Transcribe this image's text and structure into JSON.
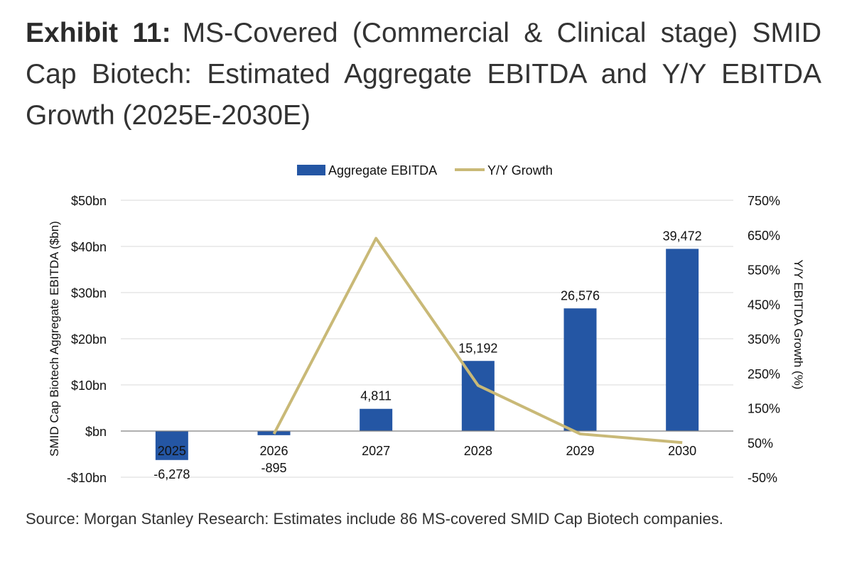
{
  "title": {
    "label": "Exhibit 11:",
    "text": "MS-Covered (Commercial & Clinical stage) SMID Cap Biotech: Estimated Aggregate EBITDA and Y/Y EBITDA Growth (2025E-2030E)"
  },
  "source": "Source: Morgan Stanley Research: Estimates include 86 MS-covered SMID Cap Biotech companies.",
  "chart_data": {
    "type": "bar",
    "categories": [
      "2025",
      "2026",
      "2027",
      "2028",
      "2029",
      "2030"
    ],
    "series": [
      {
        "name": "Aggregate EBITDA",
        "type": "bar",
        "axis": "left",
        "values": [
          -6278,
          -895,
          4811,
          15192,
          26576,
          39472
        ],
        "data_labels": [
          "-6,278",
          "-895",
          "4,811",
          "15,192",
          "26,576",
          "39,472"
        ],
        "color": "#2456a4"
      },
      {
        "name": "Y/Y Growth",
        "type": "line",
        "axis": "right",
        "values": [
          null,
          75,
          640,
          215,
          75,
          50
        ],
        "color": "#c9b977"
      }
    ],
    "ylabel": "SMID Cap Biotech Aggregate EBITDA ($bn)",
    "y2label": "Y/Y EBITDA Growth (%)",
    "ylim": [
      -10000,
      50000
    ],
    "y2lim": [
      -50,
      750
    ],
    "y_ticks": [
      "-$10bn",
      "$bn",
      "$10bn",
      "$20bn",
      "$30bn",
      "$40bn",
      "$50bn"
    ],
    "y2_ticks": [
      "-50%",
      "50%",
      "150%",
      "250%",
      "350%",
      "450%",
      "550%",
      "650%",
      "750%"
    ],
    "grid": true,
    "legend": "top-center"
  }
}
